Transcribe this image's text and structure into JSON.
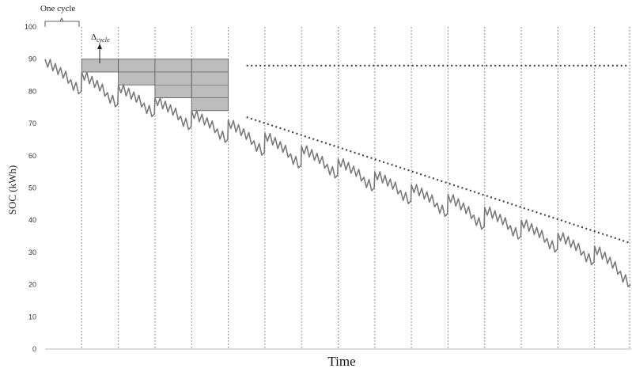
{
  "chart_data": {
    "type": "line",
    "xlabel": "Time",
    "ylabel": "SOC (kWh)",
    "ylim": [
      0,
      100
    ],
    "yticks": [
      0,
      10,
      20,
      30,
      40,
      50,
      60,
      70,
      80,
      90,
      100
    ],
    "grid": "dotted vertical lines at cycle boundaries",
    "cycles": 16,
    "series": [
      {
        "cycle_start_soc": [
          90,
          86,
          82,
          78,
          74,
          71,
          67,
          63,
          59,
          55,
          51,
          48,
          44,
          40,
          36,
          32
        ],
        "cycle_end_soc": [
          80,
          76,
          73,
          69,
          65,
          61,
          57,
          54,
          50,
          46,
          42,
          38,
          35,
          31,
          27,
          20
        ],
        "color": "#7a7a7a"
      }
    ],
    "reference_lines": [
      {
        "style": "dotted",
        "y_start": 88,
        "y_end": 88,
        "from_cycle": 6,
        "to_cycle": 16
      },
      {
        "style": "dotted",
        "y_start": 72,
        "y_end": 33,
        "from_cycle": 6,
        "to_cycle": 16
      }
    ],
    "delta_boxes": [
      {
        "cycle": 2,
        "bottom": 86,
        "top": 90
      },
      {
        "cycle": 3,
        "bottom": 82,
        "top": 90
      },
      {
        "cycle": 4,
        "bottom": 78,
        "top": 90
      },
      {
        "cycle": 5,
        "bottom": 74,
        "top": 90
      }
    ],
    "annotations": {
      "one_cycle": "One cycle",
      "delta_main": "Δ",
      "delta_sub": "cycle"
    }
  },
  "colors": {
    "line": "#7a7a7a",
    "box_fill": "#bdbdbd",
    "box_stroke": "#555555",
    "grid": "#777777",
    "ref": "#444444"
  }
}
